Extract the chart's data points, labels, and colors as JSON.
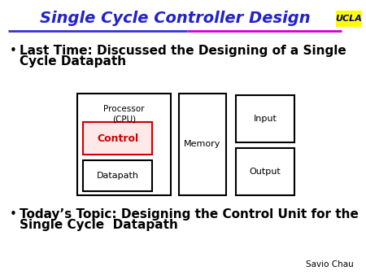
{
  "title": "Single Cycle Controller Design",
  "title_color": "#2222cc",
  "title_fontsize": 14,
  "background_color": "#ffffff",
  "ucla_text": "UCLA",
  "ucla_bg": "#ffff00",
  "bullet1_line1": "Last Time: Discussed the Designing of a Single",
  "bullet1_line2": "Cycle Datapath",
  "bullet2_line1": "Today’s Topic: Designing the Control Unit for the",
  "bullet2_line2": "Single Cycle  Datapath",
  "author": "Savio Chau",
  "box_processor_label": "Processor\n(CPU)",
  "box_control_label": "Control",
  "box_datapath_label": "Datapath",
  "box_memory_label": "Memory",
  "box_input_label": "Input",
  "box_output_label": "Output",
  "separator_line_color": "#3333cc",
  "bullet_fontsize": 11,
  "control_fill": "#ffe8e8",
  "control_edge": "#cc0000",
  "underline_color_left": "#3333cc",
  "underline_color_right": "#cc00cc"
}
